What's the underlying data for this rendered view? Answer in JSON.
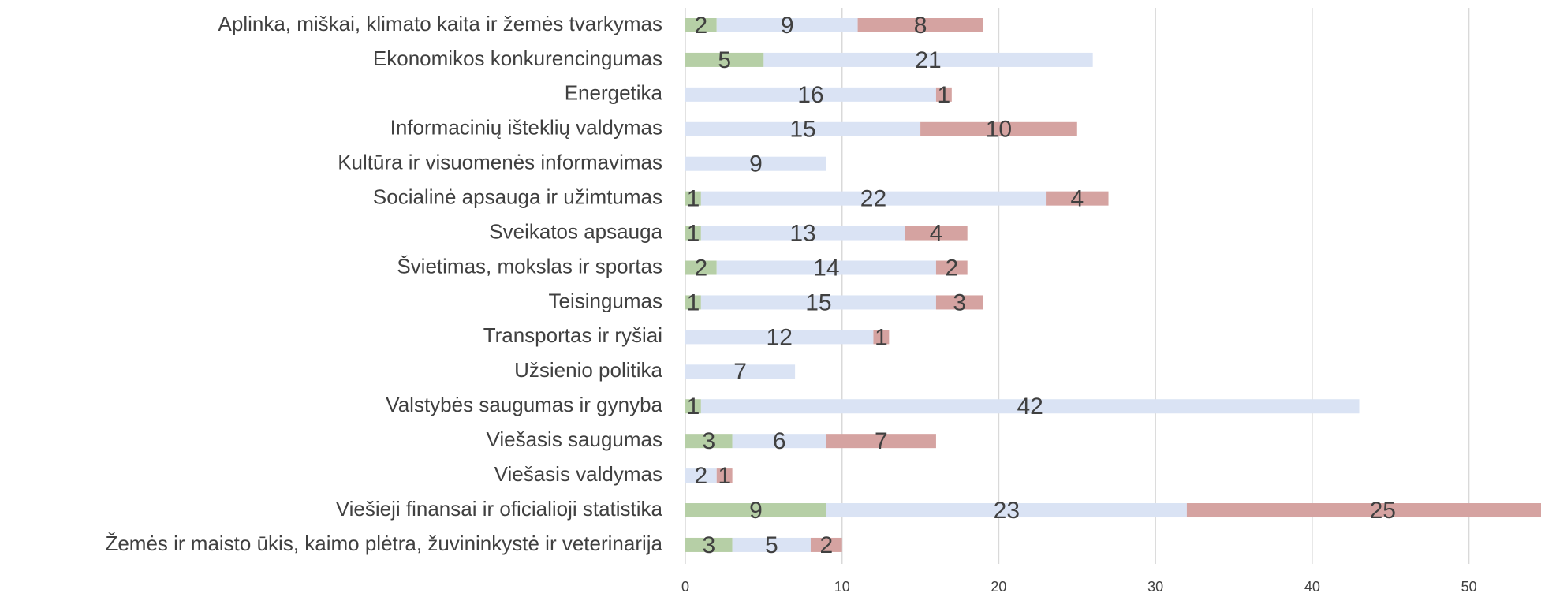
{
  "chart_data": {
    "type": "stacked-barh",
    "categories": [
      "Aplinka, miškai, klimato kaita ir žemės tvarkymas",
      "Ekonomikos konkurencingumas",
      "Energetika",
      "Informacinių išteklių valdymas",
      "Kultūra ir visuomenės informavimas",
      "Socialinė apsauga ir užimtumas",
      "Sveikatos apsauga",
      "Švietimas, mokslas ir sportas",
      "Teisingumas",
      "Transportas ir ryšiai",
      "Užsienio politika",
      "Valstybės saugumas ir gynyba",
      "Viešasis saugumas",
      "Viešasis valdymas",
      "Viešieji finansai ir oficialioji statistika",
      "Žemės ir maisto ūkis, kaimo plėtra, žuvininkystė ir veterinarija"
    ],
    "series": [
      {
        "color": "#b6cfa6",
        "values": [
          2,
          5,
          null,
          null,
          null,
          1,
          1,
          2,
          1,
          null,
          null,
          1,
          3,
          null,
          9,
          3
        ]
      },
      {
        "color": "#dae3f4",
        "values": [
          9,
          21,
          16,
          15,
          9,
          22,
          13,
          14,
          15,
          12,
          7,
          42,
          6,
          2,
          23,
          5
        ]
      },
      {
        "color": "#d5a3a1",
        "values": [
          8,
          null,
          1,
          10,
          null,
          4,
          4,
          2,
          3,
          1,
          null,
          null,
          7,
          1,
          25,
          2
        ]
      }
    ],
    "xlim": [
      0,
      54.6
    ],
    "xticks": [
      0,
      10,
      20,
      30,
      40,
      50
    ],
    "grid": true
  }
}
